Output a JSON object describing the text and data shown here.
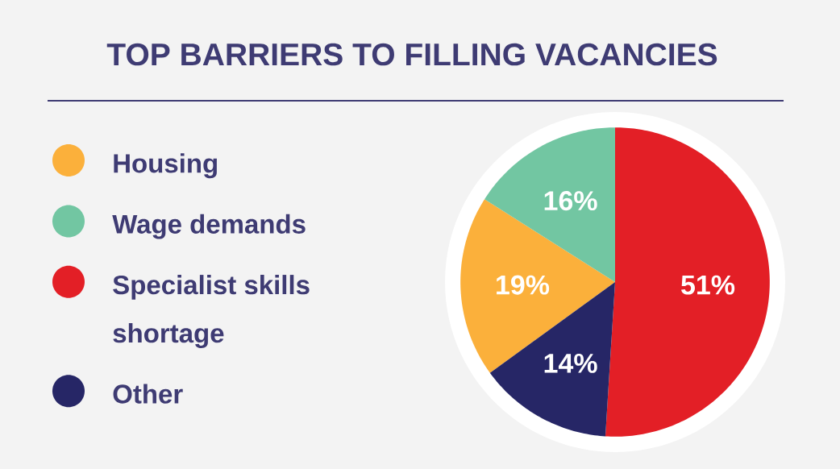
{
  "chart_data": {
    "type": "pie",
    "title": "TOP BARRIERS TO FILLING VACANCIES",
    "categories": [
      "Housing",
      "Wage demands",
      "Specialist skills shortage",
      "Other"
    ],
    "values": [
      19,
      16,
      51,
      14
    ],
    "colors": [
      "#fbb03b",
      "#72c6a2",
      "#e31f26",
      "#262666"
    ],
    "value_labels": [
      "19%",
      "16%",
      "51%",
      "14%"
    ],
    "legend": "left"
  }
}
